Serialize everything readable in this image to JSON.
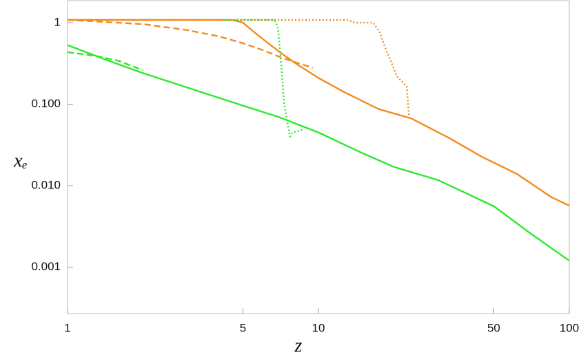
{
  "chart_data": {
    "type": "line",
    "xlabel": "z",
    "ylabel": "xₑ",
    "xscale": "log",
    "yscale": "log",
    "xlim": [
      1,
      100
    ],
    "xticks": [
      1,
      5,
      10,
      50,
      100
    ],
    "ylim": [
      0.00027,
      1.86
    ],
    "yticks": [
      1,
      {
        "value": 0.1,
        "label": "0.100"
      },
      {
        "value": 0.01,
        "label": "0.010"
      },
      0.001
    ],
    "grid": false,
    "series": [
      {
        "color": "#f28b1d",
        "dash": "solid",
        "x": [
          1,
          2,
          3,
          4,
          4.6,
          5,
          5.5,
          6.3,
          7.2,
          8.2,
          10,
          12.7,
          17.4,
          23.4,
          32.9,
          45,
          61.9,
          85,
          100
        ],
        "values": [
          1.08,
          1.08,
          1.08,
          1.08,
          1.07,
          1.0,
          0.78,
          0.56,
          0.41,
          0.31,
          0.21,
          0.14,
          0.087,
          0.067,
          0.039,
          0.0225,
          0.0139,
          0.0072,
          0.0057
        ]
      },
      {
        "color": "#f28b1d",
        "dash": "dashed",
        "x": [
          1,
          2,
          3,
          4,
          5,
          6,
          7,
          8,
          9.5
        ],
        "values": [
          1.08,
          0.96,
          0.81,
          0.68,
          0.56,
          0.46,
          0.38,
          0.33,
          0.28
        ]
      },
      {
        "color": "#f28b1d",
        "dash": "dotted",
        "x": [
          1,
          5,
          10,
          13,
          14,
          16.5,
          17.5,
          18.5,
          19.5,
          20.5,
          21.5,
          22.5,
          23
        ],
        "values": [
          1.08,
          1.08,
          1.08,
          1.08,
          1.0,
          1.0,
          0.78,
          0.48,
          0.33,
          0.22,
          0.19,
          0.165,
          0.067
        ]
      },
      {
        "color": "#2ee82e",
        "dash": "solid",
        "x": [
          1,
          1.5,
          2,
          3,
          5,
          7,
          10,
          15,
          20,
          30,
          50,
          70,
          100
        ],
        "values": [
          0.53,
          0.33,
          0.24,
          0.16,
          0.096,
          0.069,
          0.045,
          0.025,
          0.017,
          0.0117,
          0.0056,
          0.0026,
          0.0012
        ]
      },
      {
        "color": "#2ee82e",
        "dash": "dashed",
        "x": [
          1,
          1.3,
          1.6,
          2
        ],
        "values": [
          0.435,
          0.39,
          0.34,
          0.26
        ]
      },
      {
        "color": "#2ee82e",
        "dash": "dotted",
        "x": [
          4.2,
          5,
          6,
          6.7,
          6.9,
          7.1,
          7.3,
          7.5,
          7.7,
          7.9,
          8.3,
          8.7
        ],
        "values": [
          1.08,
          1.08,
          1.08,
          1.08,
          0.86,
          0.33,
          0.1,
          0.063,
          0.04,
          0.045,
          0.047,
          0.049
        ]
      }
    ]
  }
}
